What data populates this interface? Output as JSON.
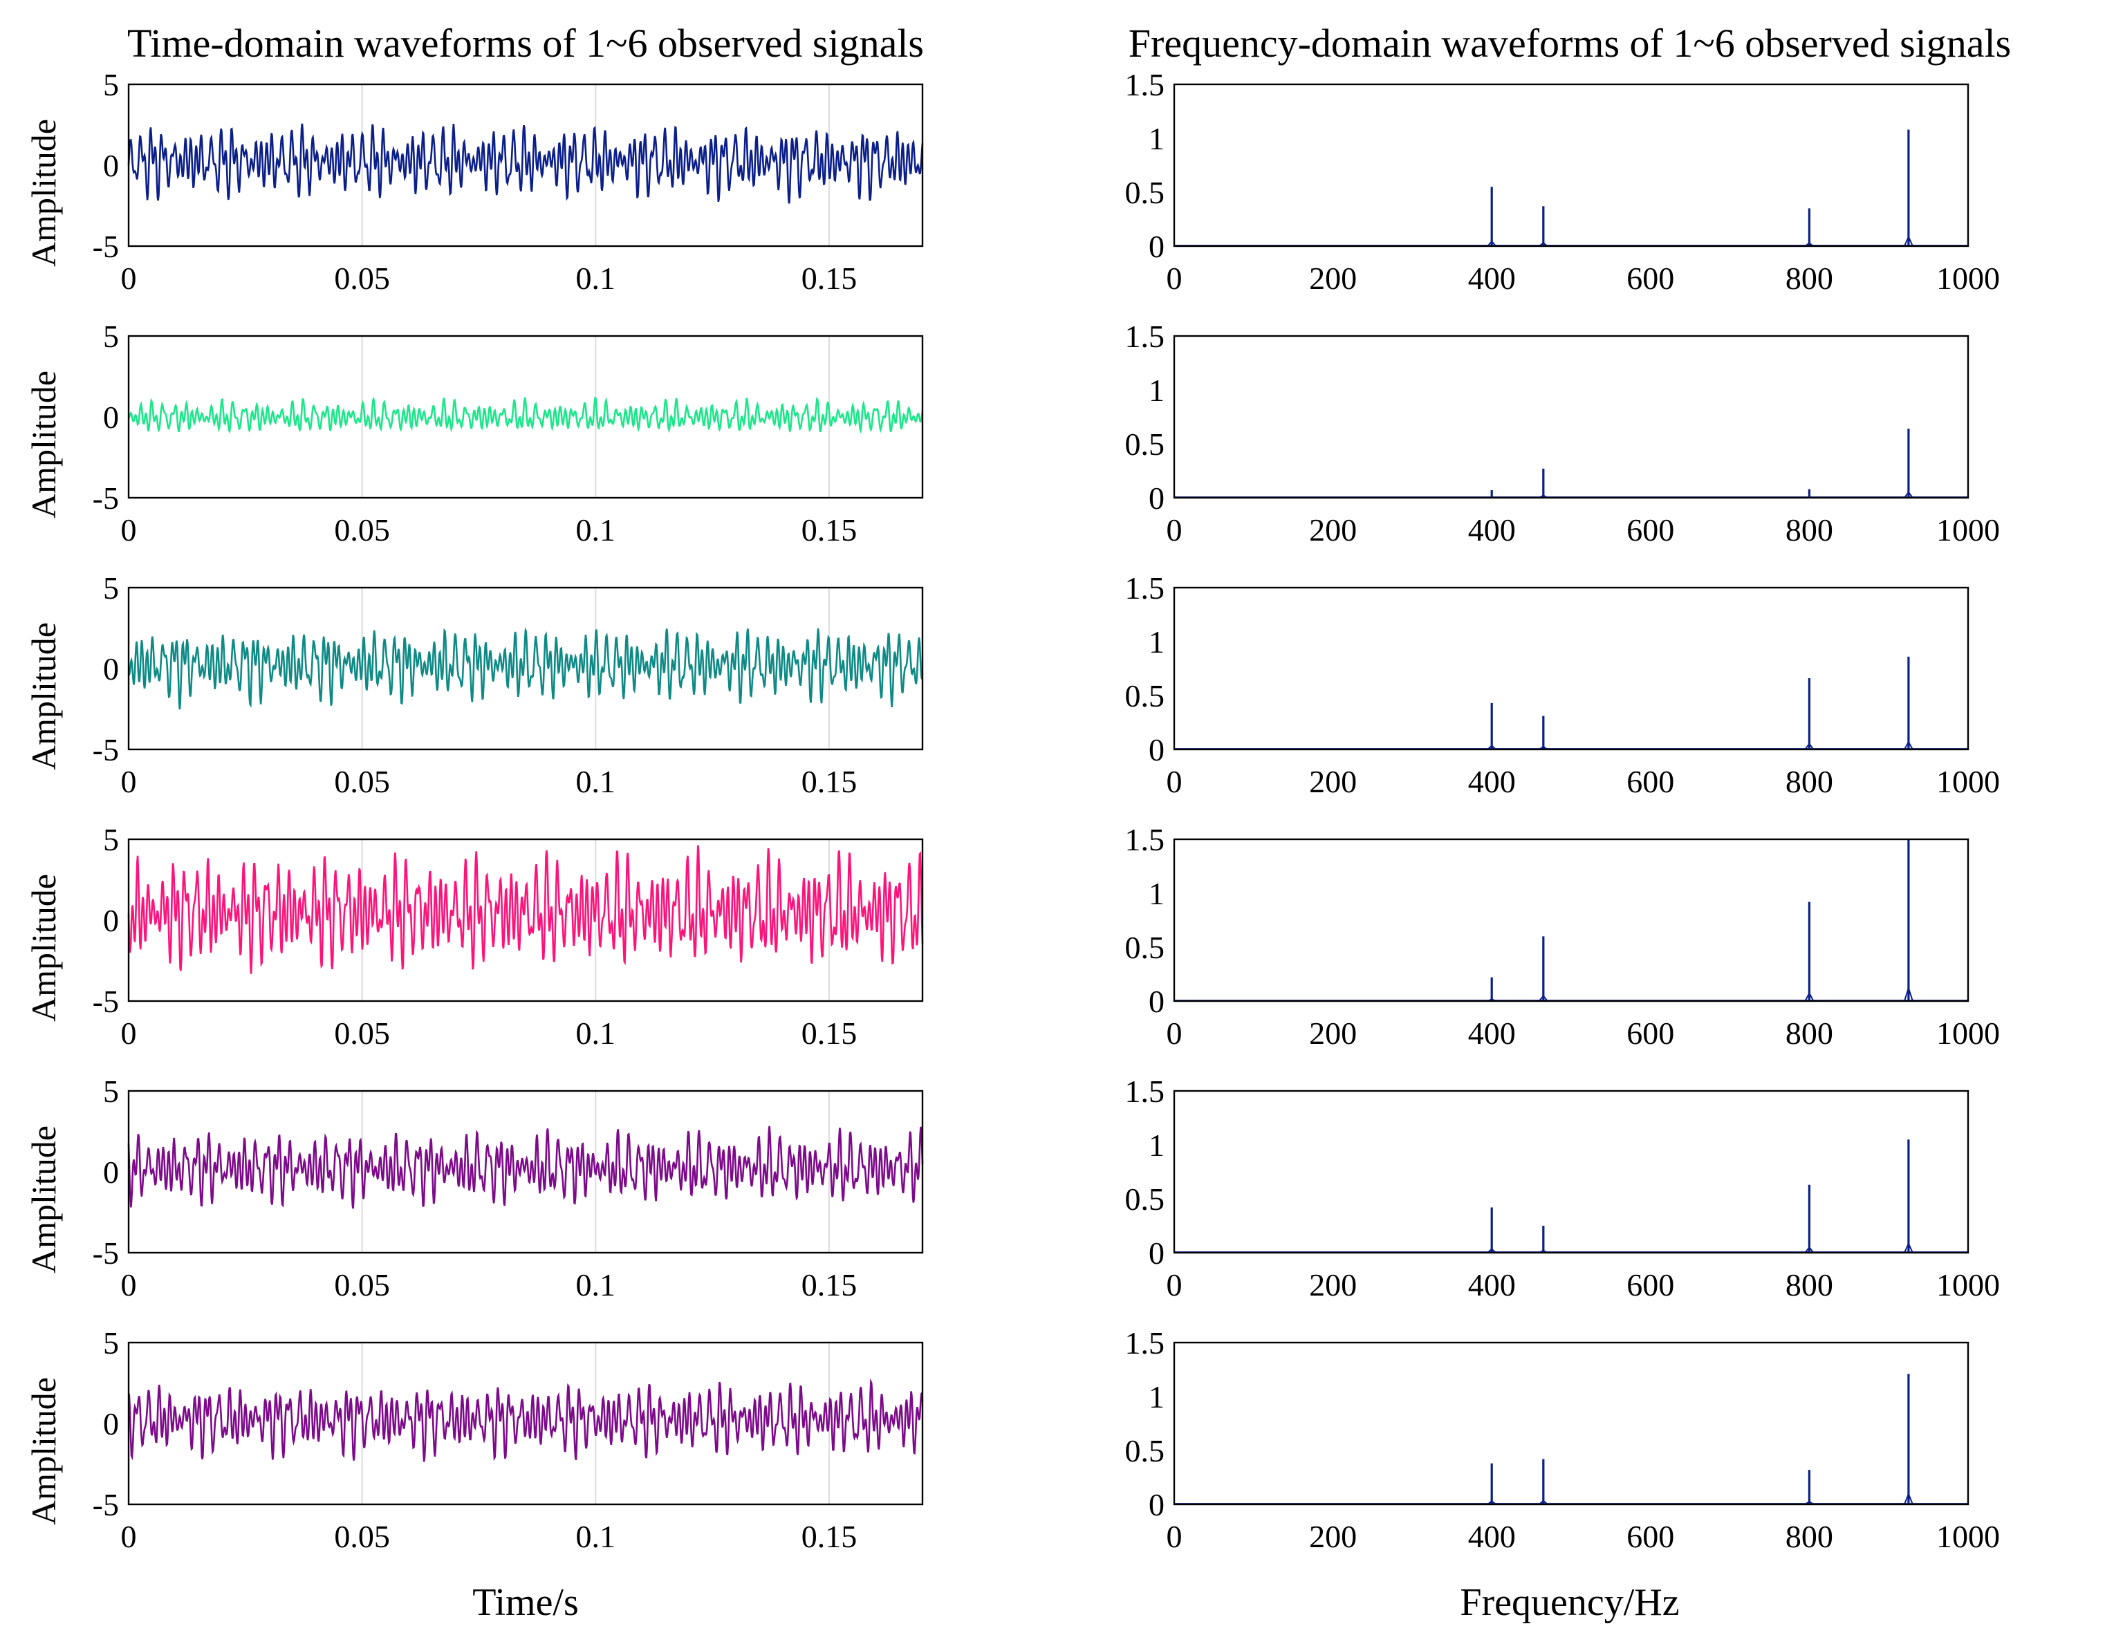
{
  "chart_data": [
    {
      "type": "line",
      "title": "Time-domain waveforms of 1~6 observed signals",
      "xlabel": "Time/s",
      "ylabel": "Amplitude",
      "xlim": [
        0,
        0.17
      ],
      "ylim": [
        -5,
        5
      ],
      "xticks": [
        "0",
        "0.05",
        "0.1",
        "0.15"
      ],
      "yticks": [
        "5",
        "0",
        "-5"
      ],
      "grid": "vertical",
      "panels": [
        {
          "signal": 1,
          "color": "#0b1f8a",
          "approx_range": [
            -2.0,
            2.5
          ]
        },
        {
          "signal": 2,
          "color": "#1de68a",
          "approx_range": [
            -1.0,
            1.0
          ]
        },
        {
          "signal": 3,
          "color": "#0e8a86",
          "approx_range": [
            -2.0,
            2.5
          ]
        },
        {
          "signal": 4,
          "color": "#ff127a",
          "approx_range": [
            -3.0,
            4.0
          ]
        },
        {
          "signal": 5,
          "color": "#7d0a8a",
          "approx_range": [
            -2.0,
            2.5
          ]
        },
        {
          "signal": 6,
          "color": "#7d0a8a",
          "approx_range": [
            -2.0,
            2.5
          ]
        }
      ]
    },
    {
      "type": "line",
      "title": "Frequency-domain waveforms of 1~6 observed signals",
      "xlabel": "Frequency/Hz",
      "ylabel": "",
      "xlim": [
        0,
        1000
      ],
      "ylim": [
        0,
        1.5
      ],
      "xticks": [
        "0",
        "200",
        "400",
        "600",
        "800",
        "1000"
      ],
      "yticks": [
        "1.5",
        "1",
        "0.5",
        "0"
      ],
      "color": "#0b1f8a",
      "peak_frequencies": [
        400,
        465,
        800,
        925
      ],
      "panels": [
        {
          "signal": 1,
          "peaks": [
            0.55,
            0.37,
            0.35,
            1.08
          ]
        },
        {
          "signal": 2,
          "peaks": [
            0.07,
            0.27,
            0.08,
            0.64
          ]
        },
        {
          "signal": 3,
          "peaks": [
            0.43,
            0.31,
            0.66,
            0.86
          ]
        },
        {
          "signal": 4,
          "peaks": [
            0.22,
            0.6,
            0.92,
            1.5
          ]
        },
        {
          "signal": 5,
          "peaks": [
            0.42,
            0.25,
            0.63,
            1.05
          ]
        },
        {
          "signal": 6,
          "peaks": [
            0.38,
            0.42,
            0.32,
            1.21
          ]
        }
      ]
    }
  ]
}
